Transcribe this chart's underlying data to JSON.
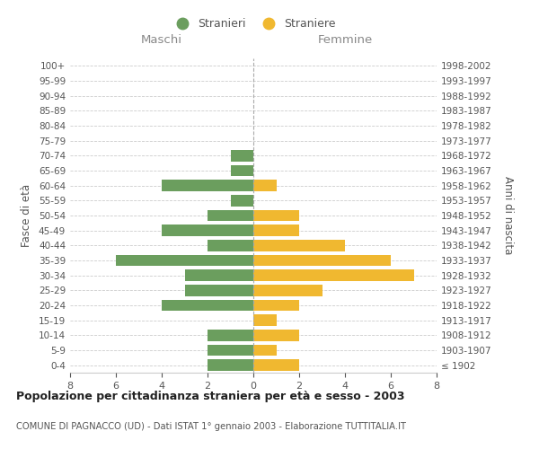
{
  "age_groups": [
    "100+",
    "95-99",
    "90-94",
    "85-89",
    "80-84",
    "75-79",
    "70-74",
    "65-69",
    "60-64",
    "55-59",
    "50-54",
    "45-49",
    "40-44",
    "35-39",
    "30-34",
    "25-29",
    "20-24",
    "15-19",
    "10-14",
    "5-9",
    "0-4"
  ],
  "birth_years": [
    "≤ 1902",
    "1903-1907",
    "1908-1912",
    "1913-1917",
    "1918-1922",
    "1923-1927",
    "1928-1932",
    "1933-1937",
    "1938-1942",
    "1943-1947",
    "1948-1952",
    "1953-1957",
    "1958-1962",
    "1963-1967",
    "1968-1972",
    "1973-1977",
    "1978-1982",
    "1983-1987",
    "1988-1992",
    "1993-1997",
    "1998-2002"
  ],
  "maschi": [
    0,
    0,
    0,
    0,
    0,
    0,
    1,
    1,
    4,
    1,
    2,
    4,
    2,
    6,
    3,
    3,
    4,
    0,
    2,
    2,
    2
  ],
  "femmine": [
    0,
    0,
    0,
    0,
    0,
    0,
    0,
    0,
    1,
    0,
    2,
    2,
    4,
    6,
    7,
    3,
    2,
    1,
    2,
    1,
    2
  ],
  "maschi_color": "#6b9e5e",
  "femmine_color": "#f0b830",
  "bar_height": 0.75,
  "xlim": 8,
  "title": "Popolazione per cittadinanza straniera per età e sesso - 2003",
  "subtitle": "COMUNE DI PAGNACCO (UD) - Dati ISTAT 1° gennaio 2003 - Elaborazione TUTTITALIA.IT",
  "ylabel_left": "Fasce di età",
  "ylabel_right": "Anni di nascita",
  "legend_stranieri": "Stranieri",
  "legend_straniere": "Straniere",
  "maschi_label": "Maschi",
  "femmine_label": "Femmine",
  "background_color": "#ffffff",
  "grid_color": "#cccccc",
  "label_color": "#888888"
}
